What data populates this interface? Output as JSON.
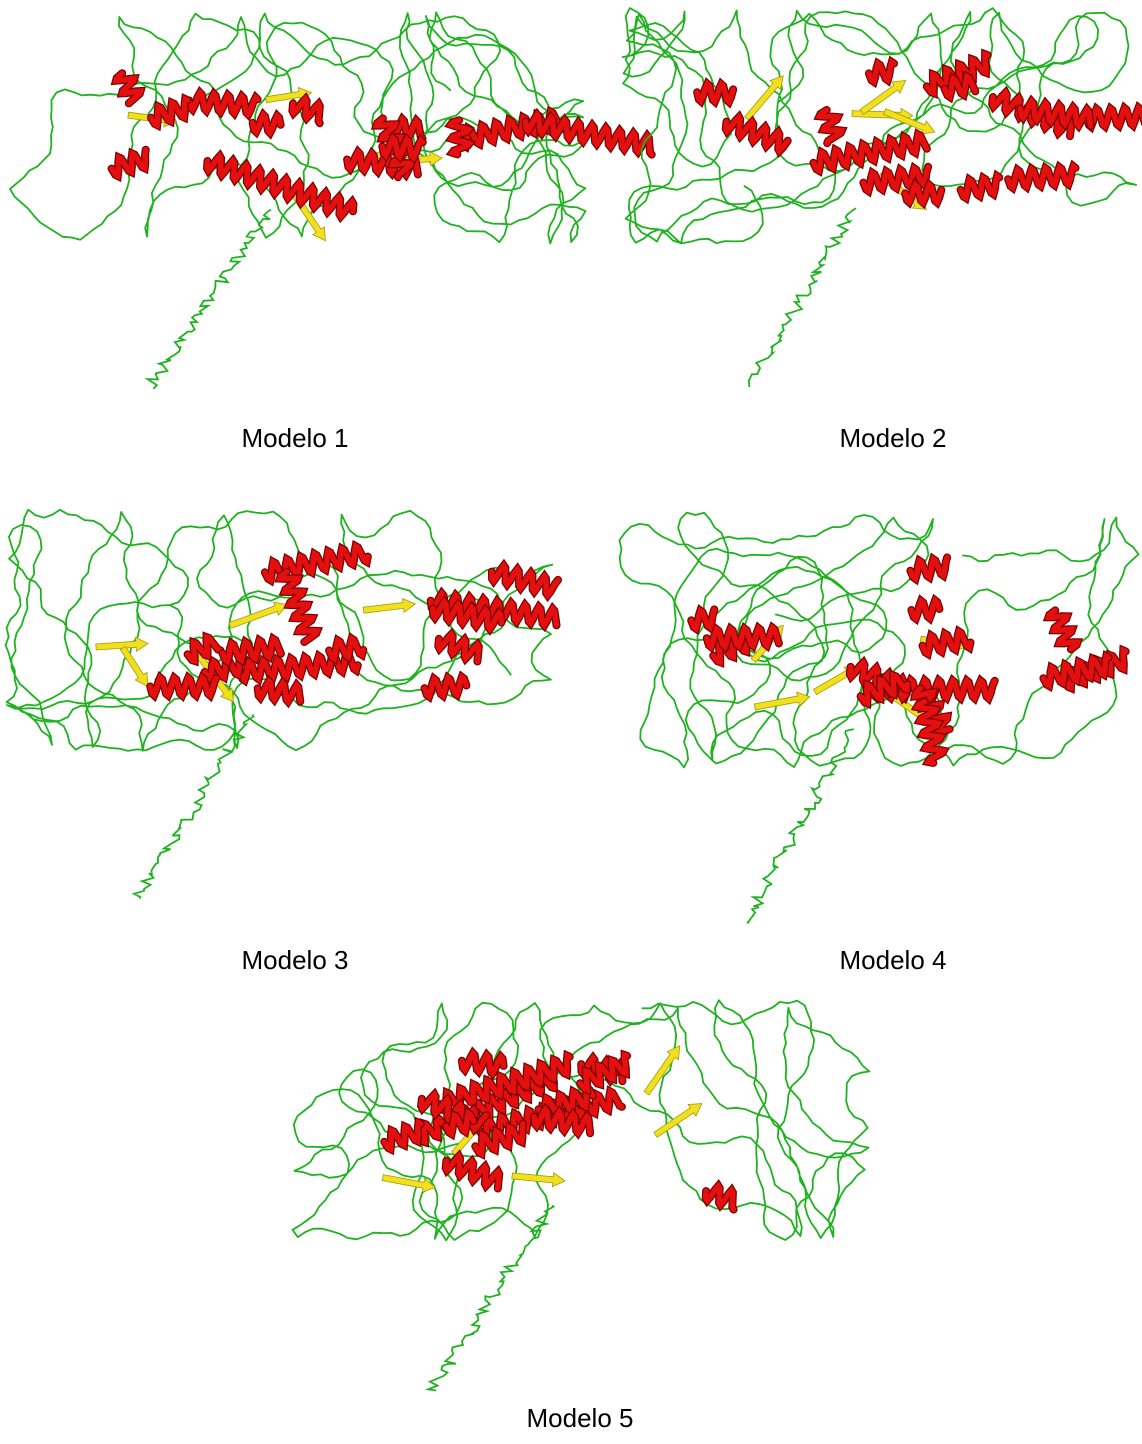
{
  "models": [
    {
      "label": "Modelo 1"
    },
    {
      "label": "Modelo 2"
    },
    {
      "label": "Modelo 3"
    },
    {
      "label": "Modelo 4"
    },
    {
      "label": "Modelo 5"
    }
  ]
}
